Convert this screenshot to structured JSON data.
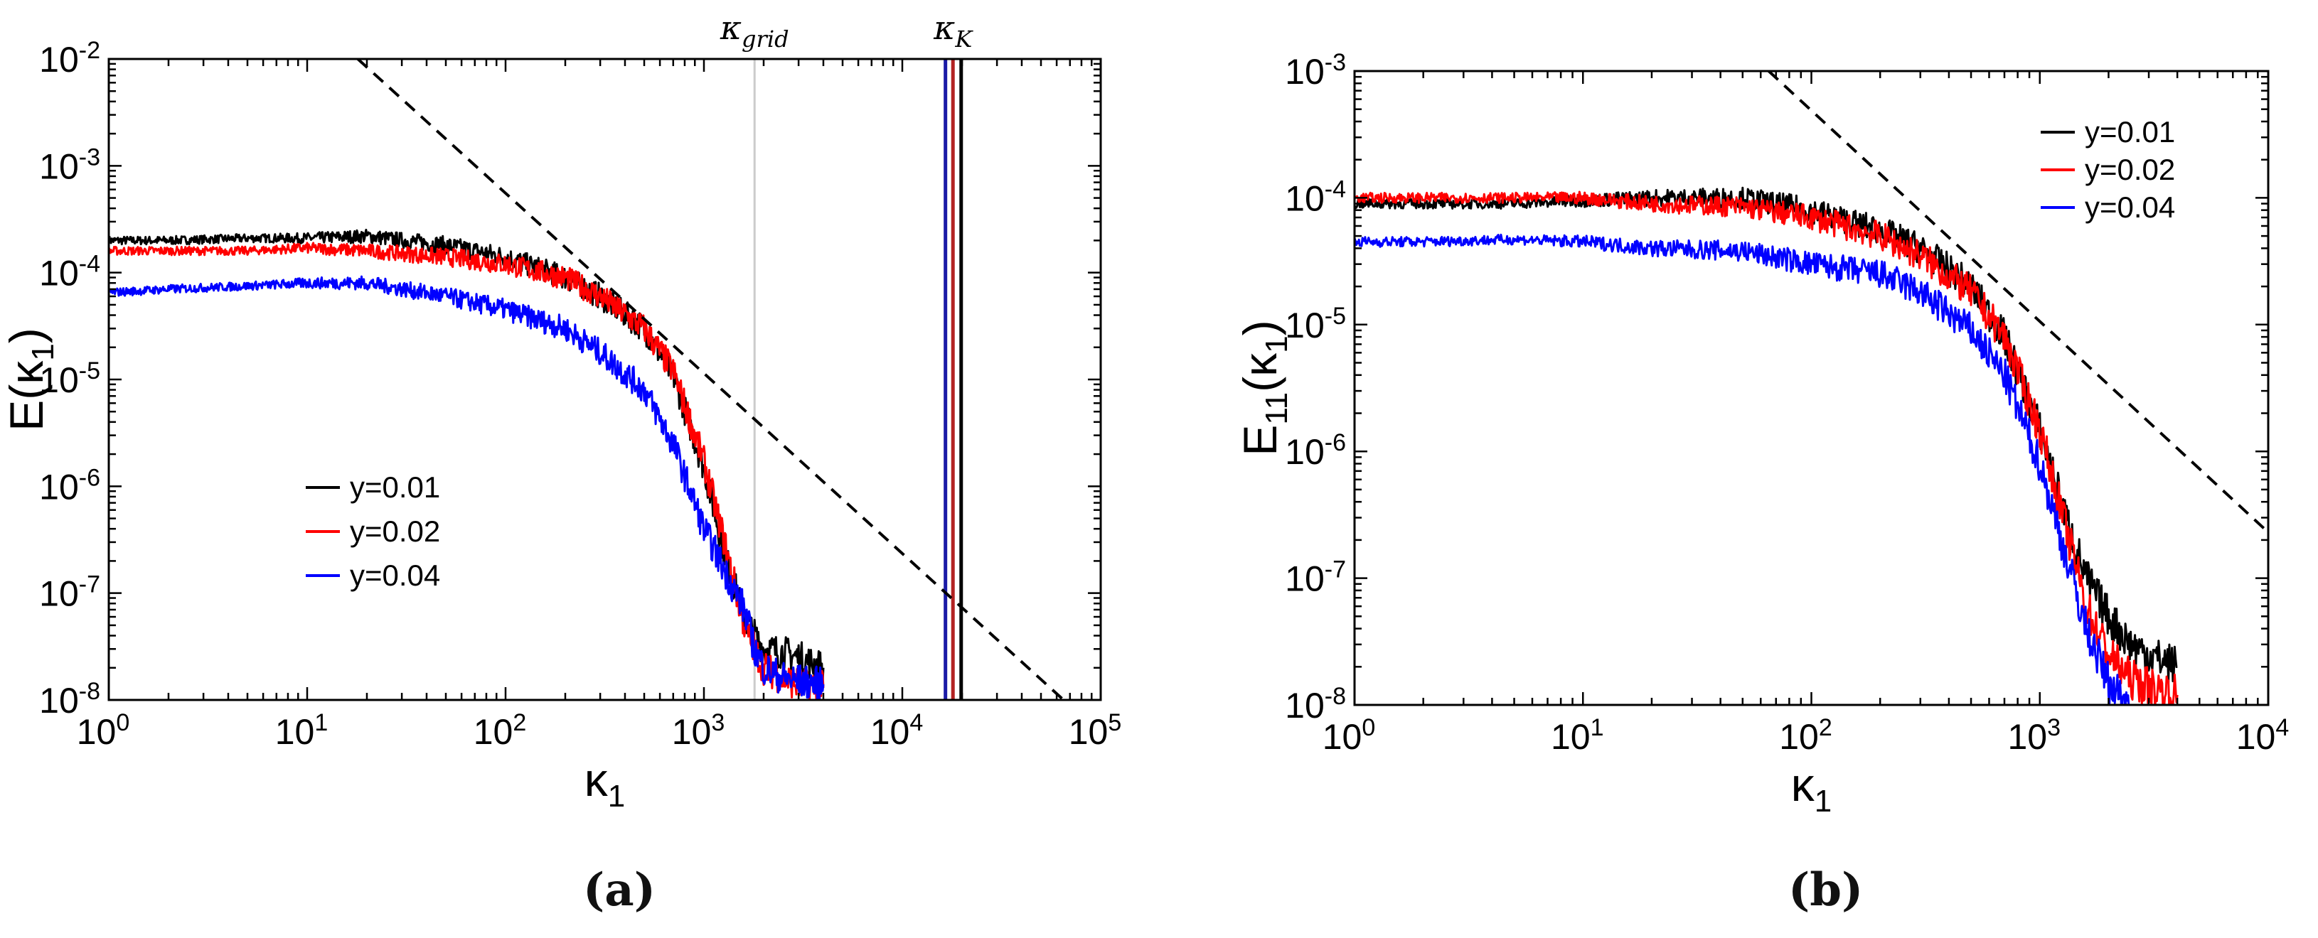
{
  "panel_labels": {
    "a": "(a)",
    "b": "(b)"
  },
  "colors": {
    "series_y001": "#000000",
    "series_y002": "#ff0000",
    "series_y004": "#0000ff",
    "dark_red": "#b22222",
    "dark_blue": "#1a1aa6",
    "grid_line": "#cccccc"
  },
  "chart_data": [
    {
      "id": "a",
      "type": "line",
      "scale": "log-log",
      "xlabel_base": "κ",
      "xlabel_sub": "1",
      "ylabel_base": "E(κ",
      "ylabel_sub": "1",
      "ylabel_close": ")",
      "xlim": [
        1,
        100000
      ],
      "ylim": [
        1e-08,
        0.01
      ],
      "x_ticks": [
        {
          "value": 1,
          "mant": "10",
          "exp": "0"
        },
        {
          "value": 10,
          "mant": "10",
          "exp": "1"
        },
        {
          "value": 100,
          "mant": "10",
          "exp": "2"
        },
        {
          "value": 1000,
          "mant": "10",
          "exp": "3"
        },
        {
          "value": 10000,
          "mant": "10",
          "exp": "4"
        },
        {
          "value": 100000,
          "mant": "10",
          "exp": "5"
        }
      ],
      "y_ticks": [
        {
          "value": 1e-08,
          "mant": "10",
          "exp": "-8"
        },
        {
          "value": 1e-07,
          "mant": "10",
          "exp": "-7"
        },
        {
          "value": 1e-06,
          "mant": "10",
          "exp": "-6"
        },
        {
          "value": 1e-05,
          "mant": "10",
          "exp": "-5"
        },
        {
          "value": 0.0001,
          "mant": "10",
          "exp": "-4"
        },
        {
          "value": 0.001,
          "mant": "10",
          "exp": "-3"
        },
        {
          "value": 0.01,
          "mant": "10",
          "exp": "-2"
        }
      ],
      "legend": [
        "y=0.01",
        "y=0.02",
        "y=0.04"
      ],
      "legend_position": "lower-left",
      "reference_line": {
        "style": "dashed",
        "x": [
          18,
          65000
        ],
        "y": [
          0.01,
          1e-08
        ]
      },
      "vertical_lines": [
        {
          "name": "kappa-grid",
          "x": 1800,
          "color": "#cccccc"
        },
        {
          "name": "kappa-k-blue",
          "x": 16500,
          "color": "#1a1aa6"
        },
        {
          "name": "kappa-k-red",
          "x": 18000,
          "color": "#b22222"
        },
        {
          "name": "kappa-k-black",
          "x": 19800,
          "color": "#000000"
        }
      ],
      "annotations": [
        {
          "name": "kappa-grid-label",
          "base": "κ",
          "sub": "grid",
          "x": 1800
        },
        {
          "name": "kappa-k-label",
          "base": "κ",
          "sub": "K",
          "x": 18000
        }
      ],
      "series": [
        {
          "name": "y=0.01",
          "color": "#000000",
          "x": [
            1,
            2,
            5,
            10,
            20,
            50,
            100,
            200,
            300,
            500,
            700,
            1000,
            1300,
            1600,
            1800,
            2000,
            2500,
            3000,
            4000
          ],
          "y": [
            0.0002,
            0.0002,
            0.00021,
            0.00021,
            0.00022,
            0.00018,
            0.00014,
            9e-05,
            6e-05,
            3e-05,
            1.1e-05,
            1.5e-06,
            2e-07,
            6e-08,
            4e-08,
            3e-08,
            2.8e-08,
            2.5e-08,
            2e-08
          ]
        },
        {
          "name": "y=0.02",
          "color": "#ff0000",
          "x": [
            1,
            2,
            5,
            10,
            20,
            50,
            100,
            200,
            300,
            500,
            700,
            1000,
            1300,
            1600,
            1800,
            2000,
            2500,
            3000,
            4000
          ],
          "y": [
            0.00016,
            0.00016,
            0.00016,
            0.00017,
            0.00016,
            0.00014,
            0.00012,
            9e-05,
            6e-05,
            3e-05,
            1.2e-05,
            1.7e-06,
            2.5e-07,
            5e-08,
            3e-08,
            2e-08,
            1.6e-08,
            1.4e-08,
            1.3e-08
          ]
        },
        {
          "name": "y=0.04",
          "color": "#0000ff",
          "x": [
            1,
            2,
            5,
            10,
            20,
            50,
            100,
            200,
            300,
            500,
            700,
            1000,
            1300,
            1600,
            1800,
            2000,
            2500,
            3000,
            4000
          ],
          "y": [
            6.5e-05,
            7e-05,
            7.5e-05,
            8e-05,
            8e-05,
            6e-05,
            4.5e-05,
            3e-05,
            1.8e-05,
            8e-06,
            2.5e-06,
            4e-07,
            1.5e-07,
            7e-08,
            3e-08,
            2e-08,
            1.6e-08,
            1.5e-08,
            1.4e-08
          ]
        }
      ]
    },
    {
      "id": "b",
      "type": "line",
      "scale": "log-log",
      "xlabel_base": "κ",
      "xlabel_sub": "1",
      "ylabel_base": "E",
      "ylabel_sub": "11",
      "ylabel_mid": "(κ",
      "ylabel_sub2": "1",
      "ylabel_close": ")",
      "xlim": [
        1,
        10000
      ],
      "ylim": [
        1e-08,
        0.001
      ],
      "x_ticks": [
        {
          "value": 1,
          "mant": "10",
          "exp": "0"
        },
        {
          "value": 10,
          "mant": "10",
          "exp": "1"
        },
        {
          "value": 100,
          "mant": "10",
          "exp": "2"
        },
        {
          "value": 1000,
          "mant": "10",
          "exp": "3"
        },
        {
          "value": 10000,
          "mant": "10",
          "exp": "4"
        }
      ],
      "y_ticks": [
        {
          "value": 1e-08,
          "mant": "10",
          "exp": "-8"
        },
        {
          "value": 1e-07,
          "mant": "10",
          "exp": "-7"
        },
        {
          "value": 1e-06,
          "mant": "10",
          "exp": "-6"
        },
        {
          "value": 1e-05,
          "mant": "10",
          "exp": "-5"
        },
        {
          "value": 0.0001,
          "mant": "10",
          "exp": "-4"
        },
        {
          "value": 0.001,
          "mant": "10",
          "exp": "-3"
        }
      ],
      "legend": [
        "y=0.01",
        "y=0.02",
        "y=0.04"
      ],
      "legend_position": "top-right",
      "reference_line": {
        "style": "dashed",
        "x": [
          65,
          10000
        ],
        "y": [
          0.001,
          2.3e-07
        ]
      },
      "vertical_lines": [],
      "annotations": [],
      "series": [
        {
          "name": "y=0.01",
          "color": "#000000",
          "x": [
            1,
            2,
            5,
            10,
            20,
            50,
            100,
            200,
            300,
            500,
            700,
            1000,
            1300,
            1600,
            2000,
            2500,
            3000,
            4000
          ],
          "y": [
            9e-05,
            9e-05,
            9e-05,
            9.5e-05,
            0.0001,
            0.0001,
            8e-05,
            5.5e-05,
            4e-05,
            2e-05,
            8e-06,
            1.5e-06,
            3e-07,
            1e-07,
            5e-08,
            3e-08,
            2.5e-08,
            2e-08
          ]
        },
        {
          "name": "y=0.02",
          "color": "#ff0000",
          "x": [
            1,
            2,
            5,
            10,
            20,
            50,
            100,
            200,
            300,
            500,
            700,
            1000,
            1300,
            1600,
            2000,
            2500,
            3000,
            4000
          ],
          "y": [
            0.0001,
            0.0001,
            0.0001,
            0.0001,
            9e-05,
            8.5e-05,
            7e-05,
            5e-05,
            3.5e-05,
            1.8e-05,
            8e-06,
            1.5e-06,
            2.5e-07,
            6e-08,
            2.5e-08,
            1.6e-08,
            1.4e-08,
            1.2e-08
          ]
        },
        {
          "name": "y=0.04",
          "color": "#0000ff",
          "x": [
            1,
            2,
            5,
            10,
            20,
            50,
            100,
            200,
            300,
            500,
            700,
            1000,
            1300,
            1600,
            2000,
            2500
          ],
          "y": [
            4.5e-05,
            4.5e-05,
            4.7e-05,
            4.5e-05,
            4e-05,
            3.8e-05,
            3e-05,
            2.5e-05,
            1.8e-05,
            9e-06,
            4e-06,
            8e-07,
            1.5e-07,
            4e-08,
            1.5e-08,
            1e-08
          ]
        }
      ]
    }
  ]
}
